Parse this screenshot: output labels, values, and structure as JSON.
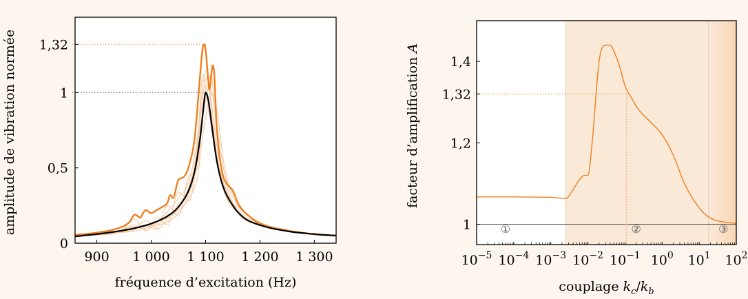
{
  "chart_data": [
    {
      "type": "line",
      "title": "",
      "xlabel": "fréquence d’excitation (Hz)",
      "ylabel": "amplitude de vibration normée",
      "xlim": [
        860,
        1340
      ],
      "ylim": [
        0,
        1.5
      ],
      "xticks": [
        900,
        1000,
        1100,
        1200,
        1300
      ],
      "xtick_labels": [
        "900",
        "1 000",
        "1 100",
        "1 200",
        "1 300"
      ],
      "yticks": [
        0,
        0.5,
        1,
        1.32
      ],
      "ytick_labels": [
        "0",
        "0,5",
        "1",
        "1,32"
      ],
      "reference_lines": [
        {
          "y": 1.32,
          "color": "#f2a96a",
          "style": "dotted"
        },
        {
          "y": 1,
          "color": "#888888",
          "style": "dotted"
        }
      ],
      "colors": {
        "envelope": "#ee7f1e",
        "nominal": "#000000",
        "sectors": "#f5c9a0"
      },
      "grid": false,
      "series": [
        {
          "role": "nominal",
          "x": [
            860,
            900,
            940,
            970,
            1000,
            1030,
            1050,
            1070,
            1080,
            1090,
            1095,
            1100,
            1105,
            1110,
            1120,
            1130,
            1150,
            1170,
            1200,
            1250,
            1300,
            1340
          ],
          "y": [
            0.045,
            0.06,
            0.08,
            0.1,
            0.13,
            0.18,
            0.24,
            0.36,
            0.48,
            0.7,
            0.86,
            1.0,
            0.95,
            0.82,
            0.56,
            0.4,
            0.25,
            0.17,
            0.12,
            0.08,
            0.06,
            0.05
          ]
        },
        {
          "role": "envelope",
          "x": [
            860,
            900,
            940,
            960,
            970,
            980,
            985,
            990,
            1000,
            1010,
            1020,
            1030,
            1035,
            1040,
            1050,
            1060,
            1070,
            1080,
            1085,
            1090,
            1095,
            1098,
            1101,
            1104,
            1107,
            1110,
            1113,
            1116,
            1120,
            1130,
            1140,
            1150,
            1160,
            1180,
            1200,
            1250,
            1300,
            1340
          ],
          "y": [
            0.055,
            0.07,
            0.1,
            0.14,
            0.19,
            0.17,
            0.2,
            0.22,
            0.2,
            0.22,
            0.24,
            0.27,
            0.32,
            0.3,
            0.42,
            0.44,
            0.52,
            0.7,
            0.9,
            1.12,
            1.3,
            1.32,
            1.25,
            1.12,
            1.02,
            1.1,
            1.18,
            1.12,
            0.8,
            0.48,
            0.39,
            0.35,
            0.26,
            0.18,
            0.13,
            0.085,
            0.06,
            0.05
          ]
        },
        {
          "role": "sector",
          "x": [
            860,
            900,
            940,
            970,
            990,
            1010,
            1030,
            1050,
            1070,
            1085,
            1095,
            1103,
            1110,
            1120,
            1135,
            1160,
            1200,
            1250,
            1300,
            1340
          ],
          "y": [
            0.05,
            0.06,
            0.08,
            0.12,
            0.11,
            0.14,
            0.21,
            0.3,
            0.42,
            0.7,
            1.05,
            1.16,
            0.9,
            0.6,
            0.38,
            0.22,
            0.13,
            0.08,
            0.06,
            0.05
          ]
        },
        {
          "role": "sector",
          "x": [
            860,
            900,
            940,
            970,
            990,
            1010,
            1030,
            1050,
            1070,
            1085,
            1095,
            1103,
            1110,
            1120,
            1135,
            1160,
            1200,
            1250,
            1300,
            1340
          ],
          "y": [
            0.05,
            0.055,
            0.07,
            0.16,
            0.08,
            0.17,
            0.12,
            0.34,
            0.28,
            0.62,
            0.98,
            1.1,
            0.95,
            0.66,
            0.42,
            0.2,
            0.12,
            0.08,
            0.06,
            0.05
          ]
        },
        {
          "role": "sector",
          "x": [
            860,
            900,
            940,
            970,
            990,
            1010,
            1030,
            1050,
            1070,
            1085,
            1095,
            1103,
            1110,
            1120,
            1135,
            1160,
            1200,
            1250,
            1300,
            1340
          ],
          "y": [
            0.05,
            0.06,
            0.075,
            0.09,
            0.15,
            0.1,
            0.25,
            0.18,
            0.45,
            0.5,
            0.85,
            1.0,
            1.12,
            0.74,
            0.36,
            0.24,
            0.14,
            0.085,
            0.06,
            0.05
          ]
        },
        {
          "role": "sector",
          "x": [
            860,
            900,
            940,
            970,
            990,
            1010,
            1030,
            1050,
            1070,
            1085,
            1095,
            1103,
            1110,
            1120,
            1135,
            1160,
            1200,
            1250,
            1300,
            1340
          ],
          "y": [
            0.05,
            0.06,
            0.07,
            0.08,
            0.1,
            0.12,
            0.14,
            0.2,
            0.33,
            0.55,
            0.9,
            1.05,
            1.0,
            0.9,
            0.5,
            0.27,
            0.13,
            0.08,
            0.06,
            0.05
          ]
        },
        {
          "role": "sector",
          "x": [
            860,
            900,
            940,
            970,
            990,
            1010,
            1030,
            1050,
            1070,
            1085,
            1095,
            1103,
            1110,
            1120,
            1135,
            1160,
            1200,
            1250,
            1300,
            1340
          ],
          "y": [
            0.05,
            0.06,
            0.08,
            0.11,
            0.09,
            0.13,
            0.17,
            0.26,
            0.38,
            0.66,
            1.12,
            0.95,
            0.78,
            0.55,
            0.33,
            0.2,
            0.12,
            0.08,
            0.06,
            0.05
          ]
        },
        {
          "role": "sector",
          "x": [
            860,
            900,
            940,
            970,
            990,
            1010,
            1030,
            1050,
            1070,
            1085,
            1095,
            1103,
            1110,
            1120,
            1135,
            1160,
            1200,
            1250,
            1300,
            1340
          ],
          "y": [
            0.05,
            0.06,
            0.07,
            0.1,
            0.12,
            0.09,
            0.16,
            0.22,
            0.3,
            0.44,
            0.72,
            0.9,
            1.02,
            0.8,
            0.46,
            0.25,
            0.14,
            0.085,
            0.06,
            0.05
          ]
        }
      ]
    },
    {
      "type": "line",
      "title": "",
      "xlabel": "couplage k_c/k_b",
      "ylabel": "facteur d’amplification A",
      "xscale": "log",
      "xlim": [
        1e-05,
        100
      ],
      "ylim": [
        0.95,
        1.5
      ],
      "xticks": [
        1e-05,
        0.0001,
        0.001,
        0.01,
        0.1,
        1,
        10,
        100
      ],
      "xtick_labels": [
        {
          "base": "10",
          "exp": "−5"
        },
        {
          "base": "10",
          "exp": "−4"
        },
        {
          "base": "10",
          "exp": "−3"
        },
        {
          "base": "10",
          "exp": "−2"
        },
        {
          "base": "10",
          "exp": "−1"
        },
        {
          "base": "10",
          "exp": "0"
        },
        {
          "base": "10",
          "exp": "1"
        },
        {
          "base": "10",
          "exp": "2"
        }
      ],
      "yticks": [
        1,
        1.2,
        1.32,
        1.4
      ],
      "ytick_labels": [
        "1",
        "1,2",
        "1,32",
        "1,4"
      ],
      "reference_lines": [
        {
          "y": 1,
          "color": "#555555",
          "style": "solid"
        },
        {
          "y": 1.32,
          "x_end": 0.11,
          "color": "#f2a96a",
          "style": "dotted"
        },
        {
          "x": 0.11,
          "y_end": 1.32,
          "color": "#f2a96a",
          "style": "dotted"
        }
      ],
      "zones": [
        {
          "label": "①",
          "x_from": 1e-05,
          "x_to": 0.0025,
          "label_at": 6e-05
        },
        {
          "label": "②",
          "x_from": 0.0025,
          "x_to": 18,
          "label_at": 0.2
        },
        {
          "label": "③",
          "x_from": 18,
          "x_to": 100,
          "label_at": 45
        }
      ],
      "colors": {
        "line": "#ee7f1e",
        "zone2": "#fbe9d8",
        "zone3": "#f8d7b5"
      },
      "grid": false,
      "series": [
        {
          "role": "amplification",
          "x": [
            1e-05,
            0.0001,
            0.001,
            0.0025,
            0.004,
            0.006,
            0.008,
            0.01,
            0.013,
            0.02,
            0.03,
            0.04,
            0.05,
            0.07,
            0.1,
            0.15,
            0.2,
            0.3,
            0.5,
            1,
            2,
            4,
            10,
            20,
            50,
            100
          ],
          "y": [
            1.067,
            1.067,
            1.066,
            1.063,
            1.085,
            1.11,
            1.12,
            1.12,
            1.2,
            1.4,
            1.44,
            1.44,
            1.425,
            1.39,
            1.34,
            1.31,
            1.29,
            1.27,
            1.25,
            1.22,
            1.17,
            1.1,
            1.04,
            1.015,
            1.005,
            1.002
          ]
        }
      ]
    }
  ]
}
